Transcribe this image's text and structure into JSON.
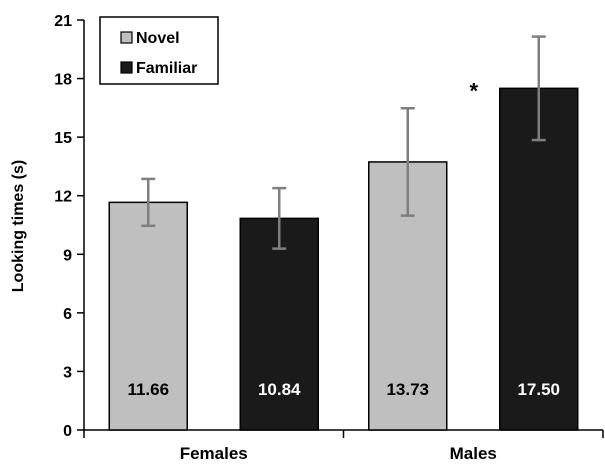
{
  "chart_data": {
    "type": "bar",
    "categories": [
      "Females",
      "Males"
    ],
    "series": [
      {
        "name": "Novel",
        "color": "#bfbfbf",
        "label_color": "#000000",
        "values": [
          11.66,
          13.73
        ],
        "error": [
          1.2,
          2.75
        ],
        "data_labels": [
          "11.66",
          "13.73"
        ]
      },
      {
        "name": "Familiar",
        "color": "#1a1a1a",
        "label_color": "#ffffff",
        "values": [
          10.84,
          17.5
        ],
        "error": [
          1.55,
          2.65
        ],
        "data_labels": [
          "10.84",
          "17.50"
        ]
      }
    ],
    "ylabel": "Looking times (s)",
    "xlabel": "",
    "ylim": [
      0,
      21
    ],
    "yticks": [
      0,
      3,
      6,
      9,
      12,
      15,
      18,
      21
    ],
    "ytick_labels": [
      "0",
      "3",
      "6",
      "9",
      "12",
      "15",
      "18",
      "21"
    ],
    "grid": false,
    "legend": "top-left",
    "annotations": [
      {
        "text": "*",
        "category": "Males",
        "near_series": "Familiar",
        "y": 17.7
      }
    ]
  }
}
